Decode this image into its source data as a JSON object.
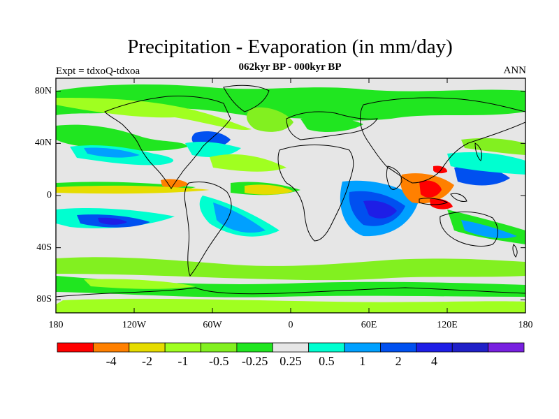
{
  "header": {
    "title": "Precipitation - Evaporation (in mm/day)",
    "experiment": "Expt = tdxoQ-tdxoa",
    "period": "062kyr BP - 000kyr BP",
    "season": "ANN"
  },
  "map": {
    "projection": "cylindrical-equidistant",
    "extent": {
      "lon": [
        -180,
        180
      ],
      "lat": [
        -90,
        90
      ]
    },
    "y_ticks": [
      {
        "lat": 80,
        "label": "80N"
      },
      {
        "lat": 40,
        "label": "40N"
      },
      {
        "lat": 0,
        "label": "0"
      },
      {
        "lat": -40,
        "label": "40S"
      },
      {
        "lat": -80,
        "label": "80S"
      }
    ],
    "x_ticks": [
      {
        "lon": -180,
        "label": "180"
      },
      {
        "lon": -120,
        "label": "120W"
      },
      {
        "lon": -60,
        "label": "60W"
      },
      {
        "lon": 0,
        "label": "0"
      },
      {
        "lon": 60,
        "label": "60E"
      },
      {
        "lon": 120,
        "label": "120E"
      },
      {
        "lon": 180,
        "label": "180"
      }
    ],
    "background_color": "#e6e6e6",
    "coastline_color": "#000000"
  },
  "colorbar": {
    "colors": [
      "#ff0000",
      "#ff8000",
      "#e6dc00",
      "#a0ff20",
      "#82f020",
      "#20e620",
      "#e6e6e6",
      "#00ffd0",
      "#00a0ff",
      "#0050f0",
      "#1e1ee6",
      "#2020c8",
      "#7820e0"
    ],
    "labels": [
      "-4",
      "-2",
      "-1",
      "-0.5",
      "-0.25",
      "0.25",
      "0.5",
      "1",
      "2",
      "4"
    ]
  }
}
